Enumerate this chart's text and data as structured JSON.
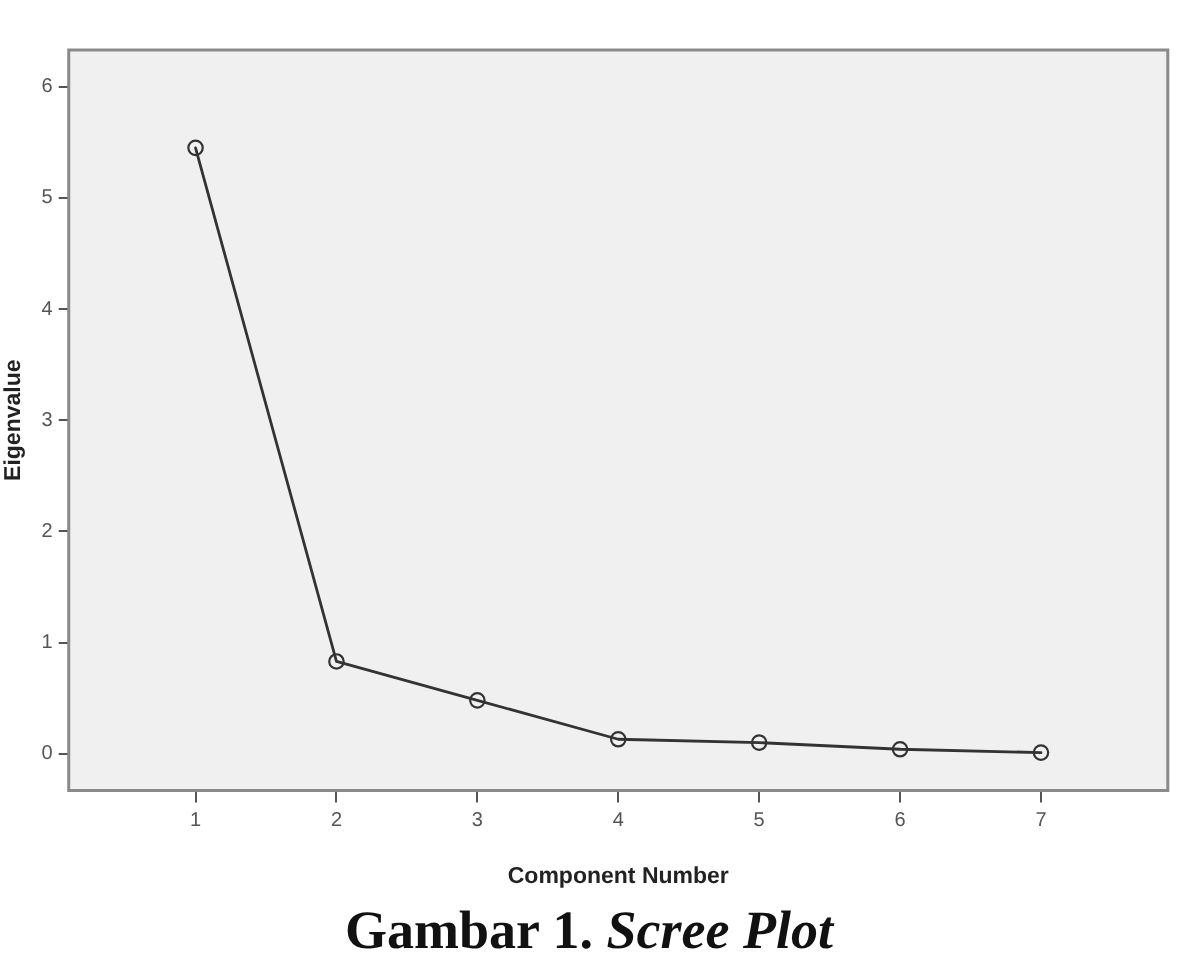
{
  "chart_data": {
    "type": "line",
    "title": "Gambar 1. Scree Plot",
    "xlabel": "Component Number",
    "ylabel": "Eigenvalue",
    "x": [
      1,
      2,
      3,
      4,
      5,
      6,
      7
    ],
    "values": [
      5.45,
      0.83,
      0.48,
      0.13,
      0.1,
      0.04,
      0.01
    ],
    "color": "#333333",
    "xlim": [
      0.1,
      7.9
    ],
    "ylim": [
      -0.33,
      6.33
    ],
    "xticks": [
      1,
      2,
      3,
      4,
      5,
      6,
      7
    ],
    "yticks": [
      0,
      1,
      2,
      3,
      4,
      5,
      6
    ],
    "marker": "circle",
    "line_style": "solid",
    "legend": false
  }
}
